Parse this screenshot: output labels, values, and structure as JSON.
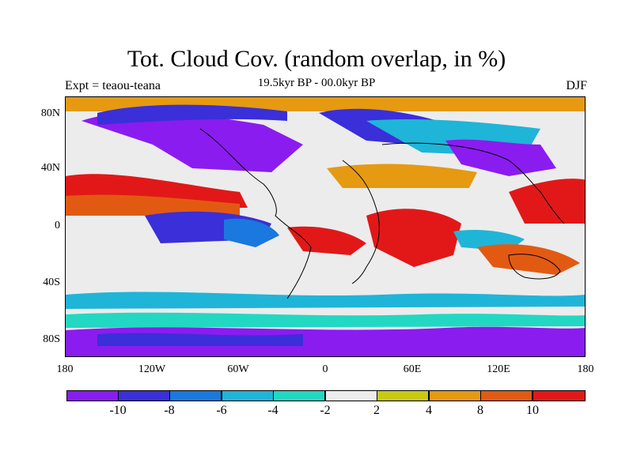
{
  "title": "Tot. Cloud Cov. (random overlap, in %)",
  "subtitle": "19.5kyr BP - 00.0kyr BP",
  "experiment_label": "Expt = teaou-teana",
  "season_label": "DJF",
  "y_axis_labels": [
    "80N",
    "40N",
    "0",
    "40S",
    "80S"
  ],
  "x_axis_labels": [
    "180",
    "120W",
    "60W",
    "0",
    "60E",
    "120E",
    "180"
  ],
  "colorbar": {
    "colors": [
      "#8a1cf0",
      "#3a2fd8",
      "#1a78de",
      "#1fb5d8",
      "#22d8c2",
      "#ececec",
      "#c9c912",
      "#e59a12",
      "#e25a12",
      "#e21818"
    ],
    "labels": [
      "-10",
      "-8",
      "-6",
      "-4",
      "-2",
      "2",
      "4",
      "8",
      "10"
    ]
  }
}
